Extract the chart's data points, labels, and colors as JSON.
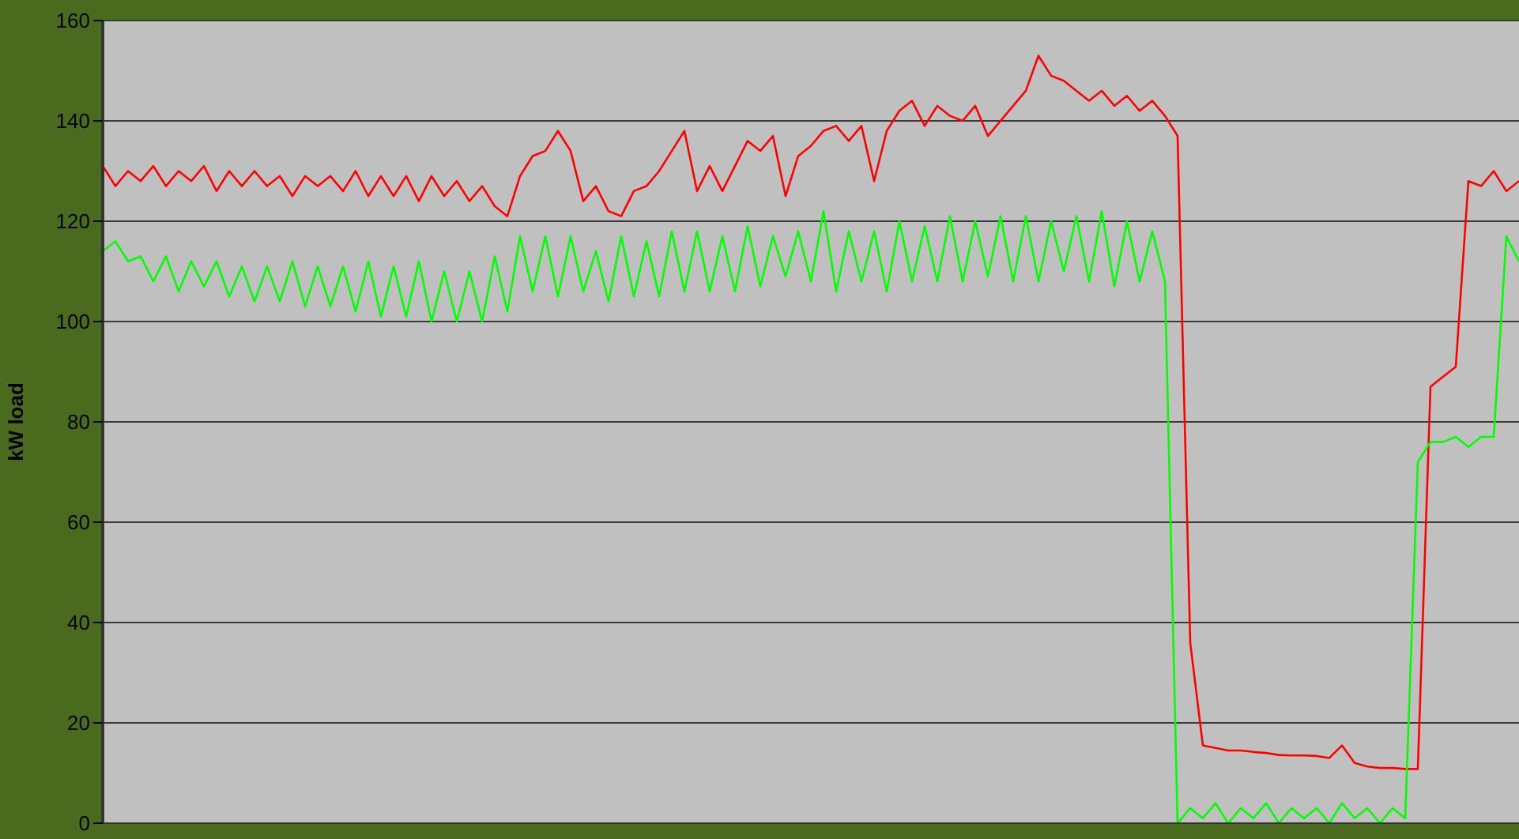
{
  "chart_data": {
    "type": "line",
    "ylabel": "kW  load",
    "categories": [
      null,
      null,
      null,
      null,
      null,
      null,
      null,
      null,
      null,
      null,
      null,
      null,
      null,
      null,
      null,
      null,
      null,
      null,
      null,
      null,
      null,
      null,
      null,
      null,
      null,
      null,
      null,
      null,
      null,
      null,
      null,
      null,
      null,
      null,
      null,
      null,
      null,
      null,
      null,
      null,
      null,
      null,
      null,
      null,
      null,
      null,
      null,
      null,
      null,
      null,
      null,
      null,
      null,
      null,
      null,
      null,
      null,
      null,
      null,
      null,
      null,
      null,
      null,
      null,
      null,
      null,
      null,
      null,
      null,
      null,
      null,
      null,
      null,
      null,
      null,
      null,
      null,
      null,
      null,
      null,
      null,
      null,
      null,
      null,
      null,
      null,
      null,
      null,
      null,
      null,
      null,
      null,
      null,
      null,
      null,
      null,
      null,
      null,
      null,
      null,
      null,
      null,
      null,
      null,
      null,
      null,
      null,
      null,
      null,
      null,
      null,
      null,
      null
    ],
    "series": [
      {
        "color": "#ff0000",
        "values": [
          131,
          127,
          130,
          128,
          131,
          127,
          130,
          128,
          131,
          126,
          130,
          127,
          130,
          127,
          129,
          125,
          129,
          127,
          129,
          126,
          130,
          125,
          129,
          125,
          129,
          124,
          129,
          125,
          128,
          124,
          127,
          123,
          121,
          129,
          133,
          134,
          138,
          134,
          124,
          127,
          122,
          121,
          126,
          127,
          130,
          134,
          138,
          126,
          131,
          126,
          131,
          136,
          134,
          137,
          125,
          133,
          135,
          138,
          139,
          136,
          139,
          128,
          138,
          142,
          144,
          139,
          143,
          141,
          140,
          143,
          137,
          140,
          143,
          146,
          153,
          149,
          148,
          146,
          144,
          146,
          143,
          145,
          142,
          144,
          141,
          137,
          36,
          15.5,
          15,
          14.5,
          14.5,
          14.2,
          14,
          13.6,
          13.5,
          13.5,
          13.4,
          13,
          15.5,
          12,
          11.3,
          11,
          11,
          10.8,
          10.8,
          87,
          89,
          91,
          128,
          127,
          130,
          126,
          128
        ]
      },
      {
        "color": "#00ff00",
        "values": [
          114,
          116,
          112,
          113,
          108,
          113,
          106,
          112,
          107,
          112,
          105,
          111,
          104,
          111,
          104,
          112,
          103,
          111,
          103,
          111,
          102,
          112,
          101,
          111,
          101,
          112,
          100,
          110,
          100,
          110,
          100,
          113,
          102,
          117,
          106,
          117,
          105,
          117,
          106,
          114,
          104,
          117,
          105,
          116,
          105,
          118,
          106,
          118,
          106,
          117,
          106,
          119,
          107,
          117,
          109,
          118,
          108,
          122,
          106,
          118,
          108,
          118,
          106,
          120,
          108,
          119,
          108,
          121,
          108,
          120,
          109,
          121,
          108,
          121,
          108,
          120,
          110,
          121,
          108,
          122,
          107,
          120,
          108,
          118,
          108,
          0,
          3,
          1,
          4,
          0,
          3,
          1,
          4,
          0,
          3,
          1,
          3,
          0,
          4,
          1,
          3,
          0,
          3,
          1,
          72,
          76,
          76,
          77,
          75,
          77,
          77,
          117,
          112
        ]
      }
    ],
    "ylim": [
      0,
      160
    ],
    "yticks": [
      0,
      20,
      40,
      60,
      80,
      100,
      120,
      140,
      160
    ],
    "grid": "y",
    "tick_labels": "y",
    "legend": false,
    "marker": "none",
    "line_style": "solid"
  }
}
